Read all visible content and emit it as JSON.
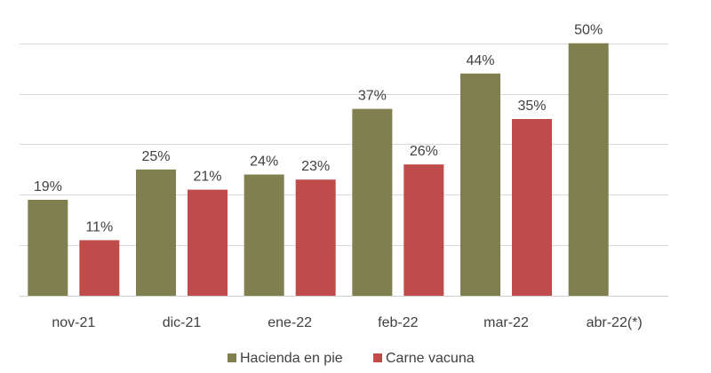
{
  "chart_data": {
    "type": "bar",
    "title": "",
    "xlabel": "",
    "ylabel": "",
    "categories": [
      "nov-21",
      "dic-21",
      "ene-22",
      "feb-22",
      "mar-22",
      "abr-22(*)"
    ],
    "series": [
      {
        "name": "Hacienda en pie",
        "color": "#7f7f4f",
        "values": [
          19,
          25,
          24,
          37,
          44,
          50
        ],
        "labels": [
          "19%",
          "25%",
          "24%",
          "37%",
          "44%",
          "50%"
        ]
      },
      {
        "name": "Carne vacuna",
        "color": "#bf4b4b",
        "values": [
          11,
          21,
          23,
          26,
          35,
          null
        ],
        "labels": [
          "11%",
          "21%",
          "23%",
          "26%",
          "35%",
          null
        ]
      }
    ],
    "ylim": [
      0,
      51
    ],
    "grid": true,
    "grid_step": 10,
    "y_tick_labels_shown": false,
    "legend": "bottom"
  }
}
